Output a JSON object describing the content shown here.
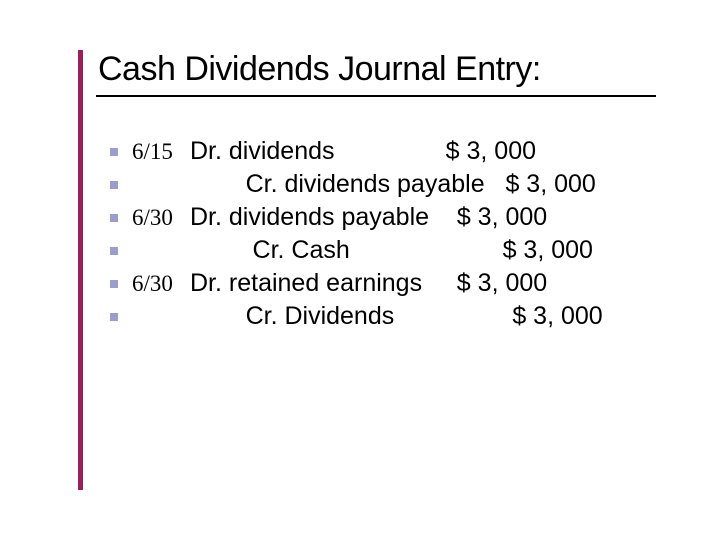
{
  "accent_color": "#9a1f5c",
  "bullet_color": "#9a9ec8",
  "title": "Cash Dividends Journal Entry:",
  "title_fontsize": 34,
  "line_fontsize": 25,
  "date_fontfamily": "Georgia, 'Times New Roman', serif",
  "background_color": "#ffffff",
  "entries": [
    {
      "date": "6/15",
      "text": "Dr. dividends                $ 3, 000"
    },
    {
      "date": "",
      "text": "        Cr. dividends payable   $ 3, 000"
    },
    {
      "date": "6/30",
      "text": "Dr. dividends payable    $ 3, 000"
    },
    {
      "date": "",
      "text": "         Cr. Cash                      $ 3, 000"
    },
    {
      "date": "6/30",
      "text": "Dr. retained earnings     $ 3, 000"
    },
    {
      "date": "",
      "text": "        Cr. Dividends                 $ 3, 000"
    }
  ]
}
